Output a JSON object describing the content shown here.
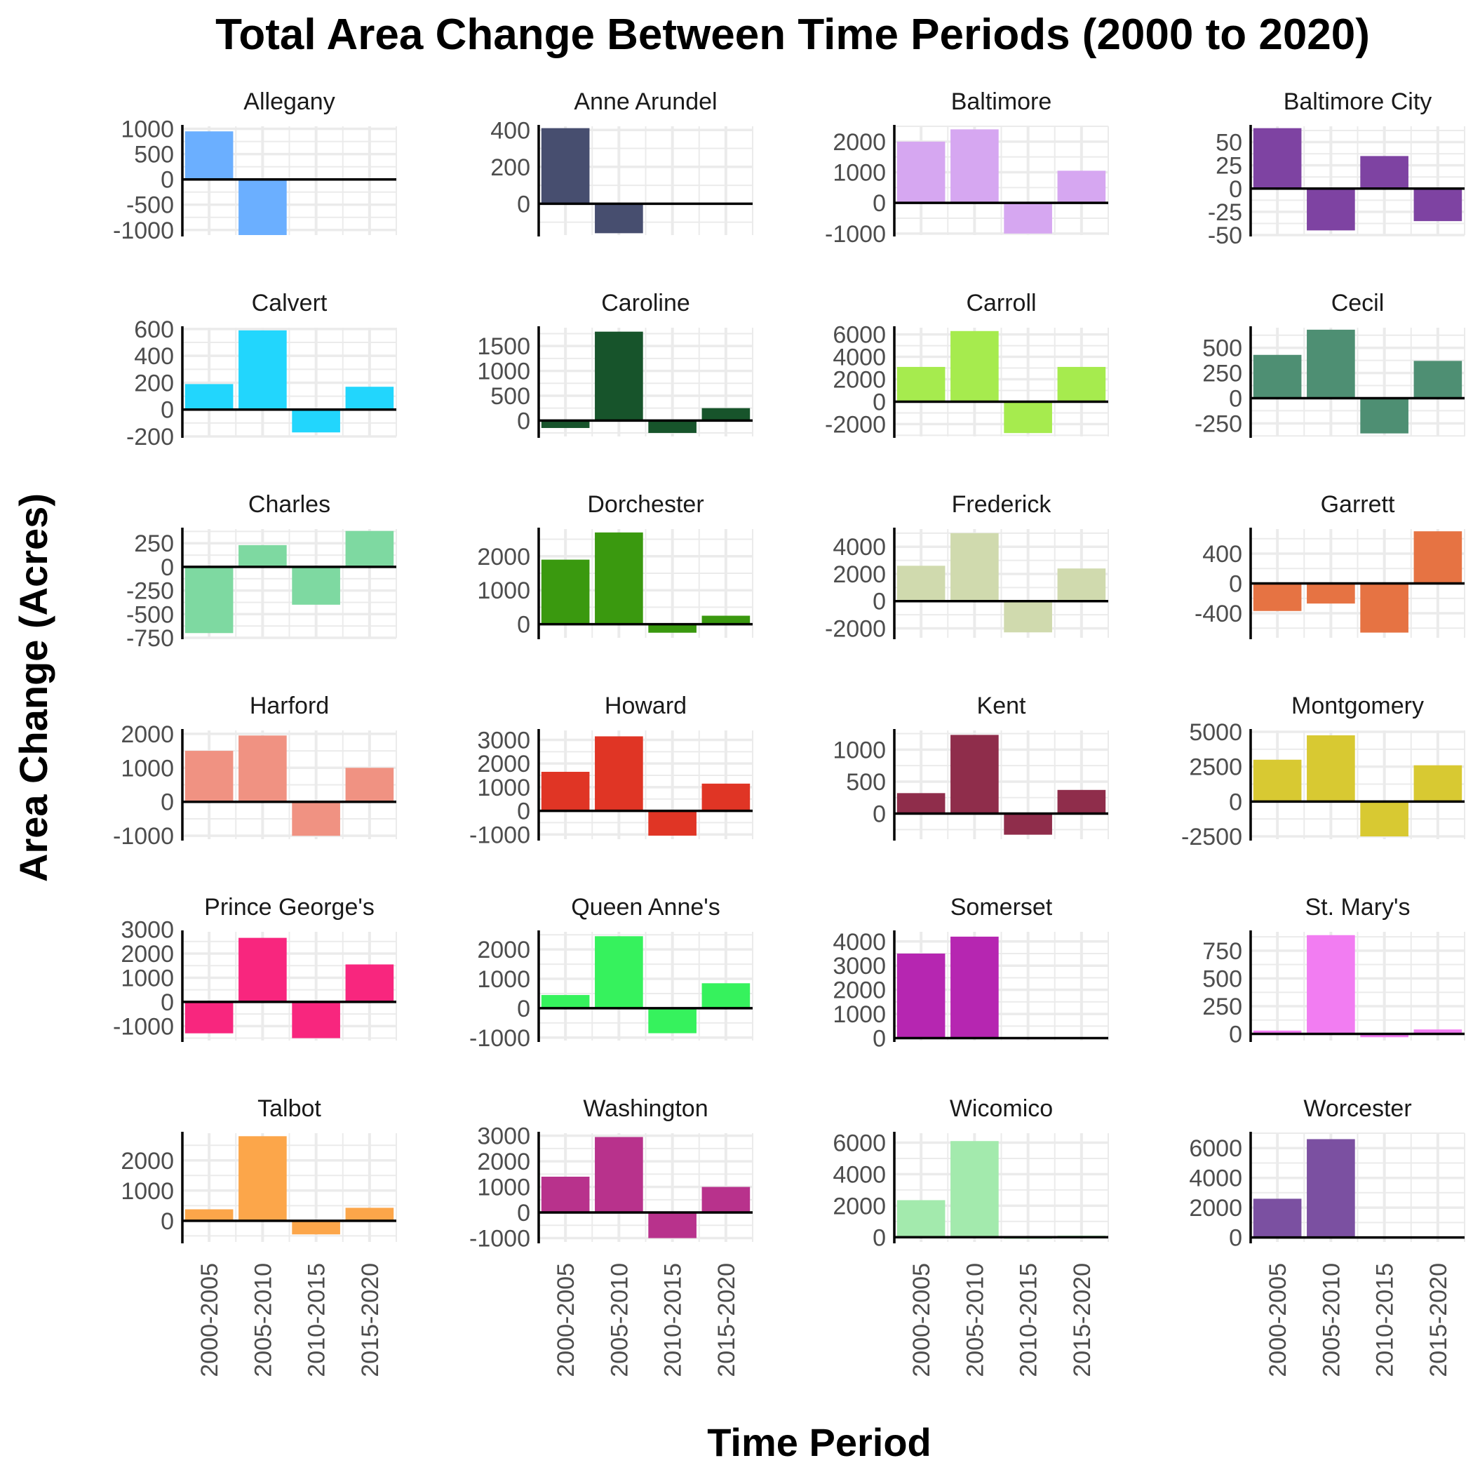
{
  "chart_data": {
    "type": "bar",
    "title": "Total Area Change Between Time Periods (2000 to 2020)",
    "xlabel": "Time Period",
    "ylabel": "Area Change (Acres)",
    "categories": [
      "2000-2005",
      "2005-2010",
      "2010-2015",
      "2015-2020"
    ],
    "grid": true,
    "layout": "facet grid, 6 rows x 4 columns",
    "panels": [
      {
        "name": "Allegany",
        "color": "#6BAFFF",
        "values": [
          950,
          -1100,
          0,
          20
        ],
        "ylim": [
          -1100,
          1050
        ],
        "yticks": [
          1000,
          500,
          0,
          -500,
          -1000
        ]
      },
      {
        "name": "Anne Arundel",
        "color": "#474E6F",
        "values": [
          410,
          -160,
          0,
          0
        ],
        "ylim": [
          -170,
          420
        ],
        "yticks": [
          400,
          200,
          0
        ]
      },
      {
        "name": "Baltimore",
        "color": "#D6A7F1",
        "values": [
          2000,
          2400,
          -1000,
          1050
        ],
        "ylim": [
          -1050,
          2500
        ],
        "yticks": [
          2000,
          1000,
          0,
          -1000
        ]
      },
      {
        "name": "Baltimore City",
        "color": "#7E43A2",
        "values": [
          65,
          -45,
          35,
          -35
        ],
        "ylim": [
          -50,
          67
        ],
        "yticks": [
          50,
          25,
          0,
          -25,
          -50
        ]
      },
      {
        "name": "Calvert",
        "color": "#22D6FD",
        "values": [
          190,
          590,
          -170,
          170
        ],
        "ylim": [
          -200,
          610
        ],
        "yticks": [
          600,
          400,
          200,
          0,
          -200
        ]
      },
      {
        "name": "Caroline",
        "color": "#17542B",
        "values": [
          -150,
          1790,
          -250,
          250
        ],
        "ylim": [
          -320,
          1870
        ],
        "yticks": [
          1500,
          1000,
          500,
          0
        ]
      },
      {
        "name": "Carroll",
        "color": "#A6EB4E",
        "values": [
          3100,
          6300,
          -2800,
          3100
        ],
        "ylim": [
          -3100,
          6600
        ],
        "yticks": [
          6000,
          4000,
          2000,
          0,
          -2000
        ]
      },
      {
        "name": "Cecil",
        "color": "#4E8F73",
        "values": [
          430,
          680,
          -350,
          370
        ],
        "ylim": [
          -380,
          700
        ],
        "yticks": [
          500,
          250,
          0,
          -250
        ]
      },
      {
        "name": "Charles",
        "color": "#7ED9A1",
        "values": [
          -700,
          230,
          -400,
          380
        ],
        "ylim": [
          -750,
          400
        ],
        "yticks": [
          250,
          0,
          -250,
          -500,
          -750
        ]
      },
      {
        "name": "Dorchester",
        "color": "#3A990F",
        "values": [
          1900,
          2700,
          -250,
          250
        ],
        "ylim": [
          -400,
          2800
        ],
        "yticks": [
          2000,
          1000,
          0
        ]
      },
      {
        "name": "Frederick",
        "color": "#D0DAAE",
        "values": [
          2600,
          5000,
          -2300,
          2400
        ],
        "ylim": [
          -2700,
          5300
        ],
        "yticks": [
          4000,
          2000,
          0,
          -2000
        ]
      },
      {
        "name": "Garrett",
        "color": "#E67343",
        "values": [
          -370,
          -270,
          -660,
          700
        ],
        "ylim": [
          -730,
          730
        ],
        "yticks": [
          400,
          0,
          -400
        ]
      },
      {
        "name": "Harford",
        "color": "#F09282",
        "values": [
          1500,
          1950,
          -1000,
          1000
        ],
        "ylim": [
          -1100,
          2100
        ],
        "yticks": [
          2000,
          1000,
          0,
          -1000
        ]
      },
      {
        "name": "Howard",
        "color": "#E03525",
        "values": [
          1650,
          3150,
          -1050,
          1150
        ],
        "ylim": [
          -1200,
          3400
        ],
        "yticks": [
          3000,
          2000,
          1000,
          0,
          -1000
        ]
      },
      {
        "name": "Kent",
        "color": "#8F2D4B",
        "values": [
          320,
          1230,
          -330,
          370
        ],
        "ylim": [
          -400,
          1300
        ],
        "yticks": [
          1000,
          500,
          0
        ]
      },
      {
        "name": "Montgomery",
        "color": "#D8C932",
        "values": [
          3000,
          4750,
          -2500,
          2600
        ],
        "ylim": [
          -2700,
          5100
        ],
        "yticks": [
          5000,
          2500,
          0,
          -2500
        ]
      },
      {
        "name": "Prince George's",
        "color": "#F8267E",
        "values": [
          -1300,
          2650,
          -1500,
          1550
        ],
        "ylim": [
          -1600,
          2900
        ],
        "yticks": [
          3000,
          2000,
          1000,
          0,
          -1000
        ]
      },
      {
        "name": "Queen Anne's",
        "color": "#36F25D",
        "values": [
          450,
          2450,
          -850,
          850
        ],
        "ylim": [
          -1100,
          2600
        ],
        "yticks": [
          2000,
          1000,
          0,
          -1000
        ]
      },
      {
        "name": "Somerset",
        "color": "#B626B1",
        "values": [
          3500,
          4200,
          -30,
          30
        ],
        "ylim": [
          -100,
          4400
        ],
        "yticks": [
          4000,
          3000,
          2000,
          1000,
          0
        ]
      },
      {
        "name": "St. Mary's",
        "color": "#F27DF2",
        "values": [
          30,
          890,
          -30,
          40
        ],
        "ylim": [
          -60,
          920
        ],
        "yticks": [
          750,
          500,
          250,
          0
        ]
      },
      {
        "name": "Talbot",
        "color": "#FCA64A",
        "values": [
          380,
          2800,
          -450,
          430
        ],
        "ylim": [
          -700,
          2900
        ],
        "yticks": [
          2000,
          1000,
          0
        ]
      },
      {
        "name": "Washington",
        "color": "#B8328C",
        "values": [
          1400,
          2950,
          -1000,
          1000
        ],
        "ylim": [
          -1150,
          3100
        ],
        "yticks": [
          3000,
          2000,
          1000,
          0,
          -1000
        ]
      },
      {
        "name": "Wicomico",
        "color": "#A3EAAD",
        "values": [
          2350,
          6100,
          -100,
          100
        ],
        "ylim": [
          -300,
          6600
        ],
        "yticks": [
          6000,
          4000,
          2000,
          0
        ]
      },
      {
        "name": "Worcester",
        "color": "#7B50A1",
        "values": [
          2600,
          6600,
          0,
          0
        ],
        "ylim": [
          -300,
          7000
        ],
        "yticks": [
          6000,
          4000,
          2000,
          0
        ]
      }
    ]
  }
}
